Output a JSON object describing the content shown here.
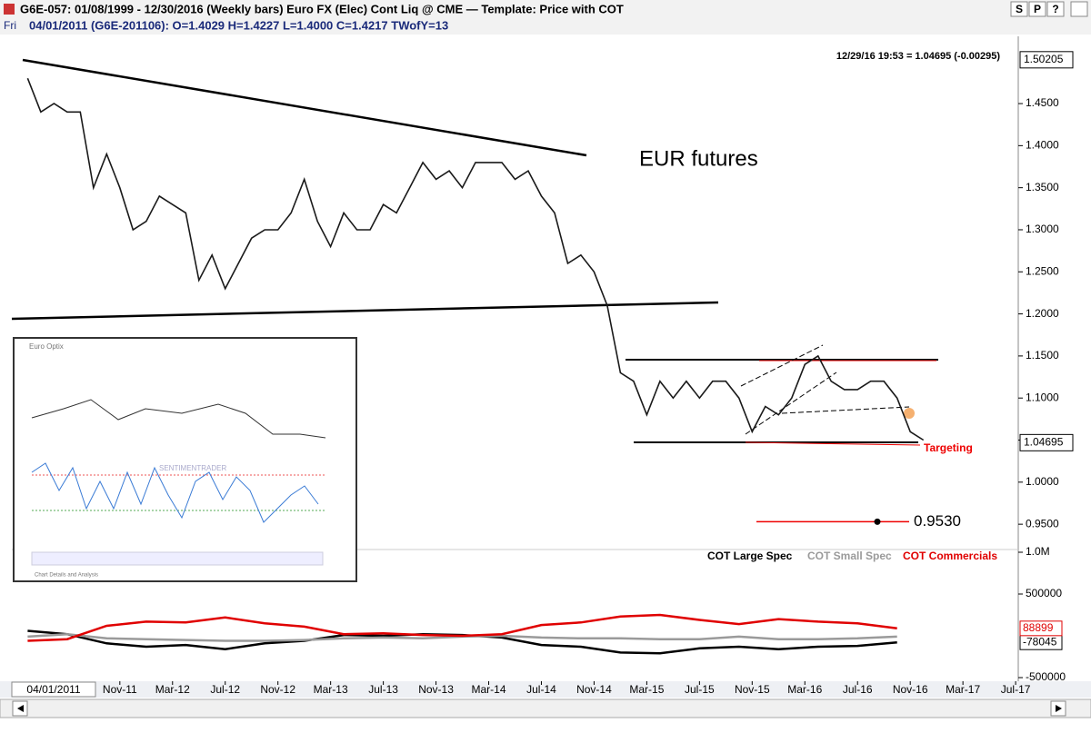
{
  "window": {
    "title": "G6E-057:  01/08/1999 - 12/30/2016  (Weekly bars)   Euro FX (Elec) Cont Liq @ CME  —  Template: Price with COT",
    "buttons": [
      "S",
      "P",
      "?"
    ]
  },
  "bar_info": {
    "day": "Fri",
    "text": "04/01/2011  (G6E-201106):   O=1.4029   H=1.4227   L=1.4000   C=1.4217   TWofY=13"
  },
  "quote": "12/29/16 19:53 = 1.04695 (-0.00295)",
  "cursor_date": "04/01/2011",
  "inset": {
    "title": "Euro Optix",
    "watermark": "SENTIMENTRADER",
    "footer": "Chart Details and Analysis"
  },
  "chart_data": [
    {
      "type": "line",
      "annotations": [
        "EUR futures",
        "Targeting"
      ],
      "x": [
        0,
        1,
        2,
        3,
        4,
        5,
        6,
        7,
        8,
        9,
        10,
        11,
        12,
        13,
        14,
        15,
        16,
        17,
        18,
        19,
        20,
        21,
        22,
        23,
        24,
        25,
        26,
        27,
        28,
        29,
        30,
        31,
        32,
        33,
        34,
        35,
        36,
        37,
        38,
        39,
        40,
        41,
        42,
        43,
        44,
        45,
        46,
        47,
        48,
        49,
        50,
        51,
        52,
        53,
        54,
        55,
        56,
        57,
        58,
        59,
        60,
        61,
        62,
        63,
        64,
        65,
        66,
        67,
        68
      ],
      "series": [
        {
          "name": "G6E-057",
          "color": "#1a1a1a",
          "values": [
            1.48,
            1.44,
            1.45,
            1.44,
            1.44,
            1.35,
            1.39,
            1.35,
            1.3,
            1.31,
            1.34,
            1.33,
            1.32,
            1.24,
            1.27,
            1.23,
            1.26,
            1.29,
            1.3,
            1.3,
            1.32,
            1.36,
            1.31,
            1.28,
            1.32,
            1.3,
            1.3,
            1.33,
            1.32,
            1.35,
            1.38,
            1.36,
            1.37,
            1.35,
            1.38,
            1.38,
            1.38,
            1.36,
            1.37,
            1.34,
            1.32,
            1.26,
            1.27,
            1.25,
            1.21,
            1.13,
            1.12,
            1.08,
            1.12,
            1.1,
            1.12,
            1.1,
            1.12,
            1.12,
            1.1,
            1.06,
            1.09,
            1.08,
            1.1,
            1.14,
            1.15,
            1.12,
            1.11,
            1.11,
            1.12,
            1.12,
            1.1,
            1.06,
            1.05
          ]
        }
      ],
      "xlim": [
        -1.2,
        75.2
      ],
      "xticks": [
        {
          "value": 7,
          "label": "Nov-11"
        },
        {
          "value": 11,
          "label": "Mar-12"
        },
        {
          "value": 15,
          "label": "Jul-12"
        },
        {
          "value": 19,
          "label": "Nov-12"
        },
        {
          "value": 23,
          "label": "Mar-13"
        },
        {
          "value": 27,
          "label": "Jul-13"
        },
        {
          "value": 31,
          "label": "Nov-13"
        },
        {
          "value": 35,
          "label": "Mar-14"
        },
        {
          "value": 39,
          "label": "Jul-14"
        },
        {
          "value": 43,
          "label": "Nov-14"
        },
        {
          "value": 47,
          "label": "Mar-15"
        },
        {
          "value": 51,
          "label": "Jul-15"
        },
        {
          "value": 55,
          "label": "Nov-15"
        },
        {
          "value": 59,
          "label": "Mar-16"
        },
        {
          "value": 63,
          "label": "Jul-16"
        },
        {
          "value": 67,
          "label": "Nov-16"
        },
        {
          "value": 71,
          "label": "Mar-17"
        },
        {
          "value": 75,
          "label": "Jul-17"
        }
      ],
      "ylim": [
        0.921,
        1.5105
      ],
      "yticks": [
        {
          "value": 0.95,
          "label": "0.9500"
        },
        {
          "value": 1.0,
          "label": "1.0000"
        },
        {
          "value": 1.05,
          "label": "1.0500"
        },
        {
          "value": 1.1,
          "label": "1.1000"
        },
        {
          "value": 1.15,
          "label": "1.1500"
        },
        {
          "value": 1.2,
          "label": "1.2000"
        },
        {
          "value": 1.25,
          "label": "1.2500"
        },
        {
          "value": 1.3,
          "label": "1.3000"
        },
        {
          "value": 1.35,
          "label": "1.3500"
        },
        {
          "value": 1.4,
          "label": "1.4000"
        },
        {
          "value": 1.45,
          "label": "1.4500"
        }
      ],
      "price_labels": [
        {
          "value": 1.50205,
          "label": "1.50205"
        },
        {
          "value": 1.04695,
          "label": "1.04695"
        }
      ],
      "target": {
        "value": 0.953,
        "label": "0.9530"
      }
    },
    {
      "type": "line",
      "x": [
        0,
        3,
        6,
        9,
        12,
        15,
        18,
        21,
        24,
        27,
        30,
        33,
        36,
        39,
        42,
        45,
        48,
        51,
        54,
        57,
        60,
        63,
        66
      ],
      "series": [
        {
          "name": "COT Large Spec",
          "color": "#000000",
          "values": [
            60000,
            20000,
            -90000,
            -130000,
            -110000,
            -160000,
            -90000,
            -60000,
            10000,
            0,
            20000,
            10000,
            -20000,
            -110000,
            -130000,
            -200000,
            -210000,
            -150000,
            -130000,
            -160000,
            -130000,
            -120000,
            -78045
          ]
        },
        {
          "name": "COT Small Spec",
          "color": "#9a9a9a",
          "values": [
            -10000,
            20000,
            -30000,
            -40000,
            -50000,
            -60000,
            -60000,
            -50000,
            -30000,
            -20000,
            -30000,
            -10000,
            0,
            -20000,
            -30000,
            -30000,
            -40000,
            -40000,
            -10000,
            -40000,
            -40000,
            -30000,
            -10000
          ]
        },
        {
          "name": "COT Commercials",
          "color": "#e00000",
          "values": [
            -60000,
            -40000,
            120000,
            170000,
            160000,
            220000,
            150000,
            110000,
            20000,
            30000,
            10000,
            0,
            20000,
            130000,
            160000,
            230000,
            250000,
            190000,
            140000,
            200000,
            170000,
            150000,
            88899
          ]
        }
      ],
      "xlim": [
        -1.2,
        75.2
      ],
      "ylim": [
        -565000,
        1032600
      ],
      "yticks": [
        {
          "value": 1000000,
          "label": "1.0M"
        },
        500000,
        -500000
      ]
    }
  ]
}
